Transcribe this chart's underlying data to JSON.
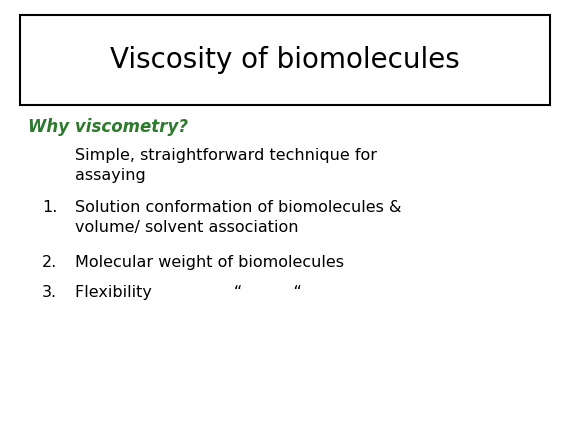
{
  "title": "Viscosity of biomolecules",
  "subtitle": "Why viscometry?",
  "subtitle_color": "#2d7a2d",
  "intro_line1": "Simple, straightforward technique for",
  "intro_line2": "assaying",
  "item1_line1": "Solution conformation of biomolecules &",
  "item1_line2": "volume/ solvent association",
  "item2": "Molecular weight of biomolecules",
  "item3": "Flexibility                “          “",
  "bg_color": "#ffffff",
  "text_color": "#000000",
  "title_fontsize": 20,
  "subtitle_fontsize": 12,
  "body_fontsize": 11.5
}
